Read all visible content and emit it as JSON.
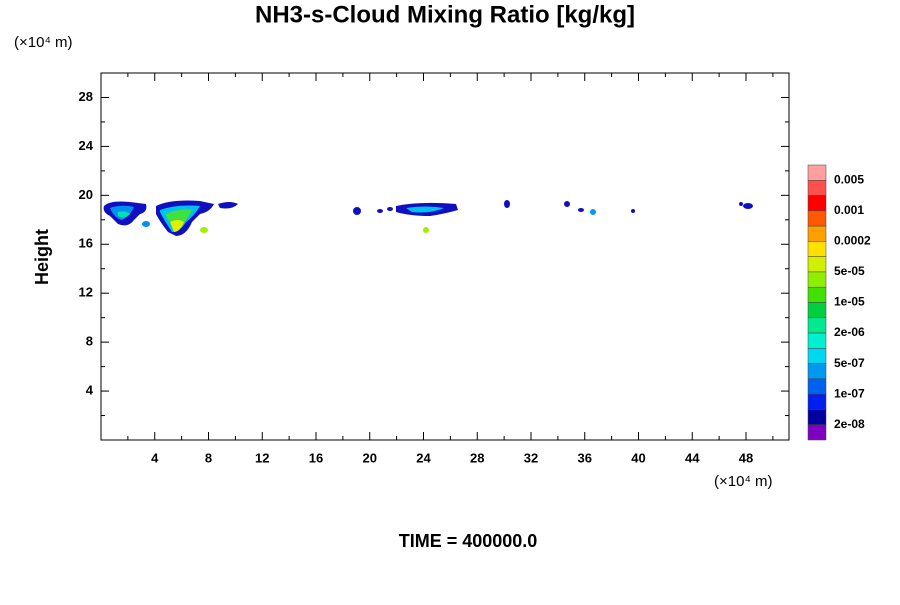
{
  "chart_data": {
    "type": "contour",
    "title": "NH3-s-Cloud Mixing Ratio [kg/kg]",
    "y_unit_label": "(×10⁴ m)",
    "x_unit_label": "(×10⁴ m)",
    "ylabel": "Height",
    "footer": "TIME = 400000.0",
    "xlim": [
      0,
      51.2
    ],
    "xticks": [
      4,
      8,
      12,
      16,
      20,
      24,
      28,
      32,
      36,
      40,
      44,
      48
    ],
    "xminorticks": [
      2,
      6,
      10,
      14,
      18,
      22,
      26,
      30,
      34,
      38,
      42,
      46,
      50
    ],
    "ylim": [
      0,
      30
    ],
    "yticks": [
      4,
      8,
      12,
      16,
      20,
      24,
      28
    ],
    "yminorticks": [
      2,
      6,
      10,
      14,
      18,
      22,
      26
    ],
    "colorbar": {
      "colors": [
        "#ff9f9f",
        "#ff5050",
        "#ff0000",
        "#ff5a00",
        "#ffa000",
        "#ffe000",
        "#d0f000",
        "#90ee00",
        "#40e000",
        "#00d040",
        "#00e890",
        "#00f0d0",
        "#00d8f0",
        "#0098f0",
        "#0060f0",
        "#0020f0",
        "#0000a0",
        "#8000c0"
      ],
      "ticks": [
        0.005,
        0.001,
        0.0002,
        {
          "value": 5e-05,
          "label": "5e-05"
        },
        {
          "value": 1e-05,
          "label": "1e-05"
        },
        {
          "value": 2e-06,
          "label": "2e-06"
        },
        {
          "value": 5e-07,
          "label": "5e-07"
        },
        {
          "value": 1e-07,
          "label": "1e-07"
        },
        {
          "value": 2e-08,
          "label": "2e-08"
        }
      ]
    }
  }
}
